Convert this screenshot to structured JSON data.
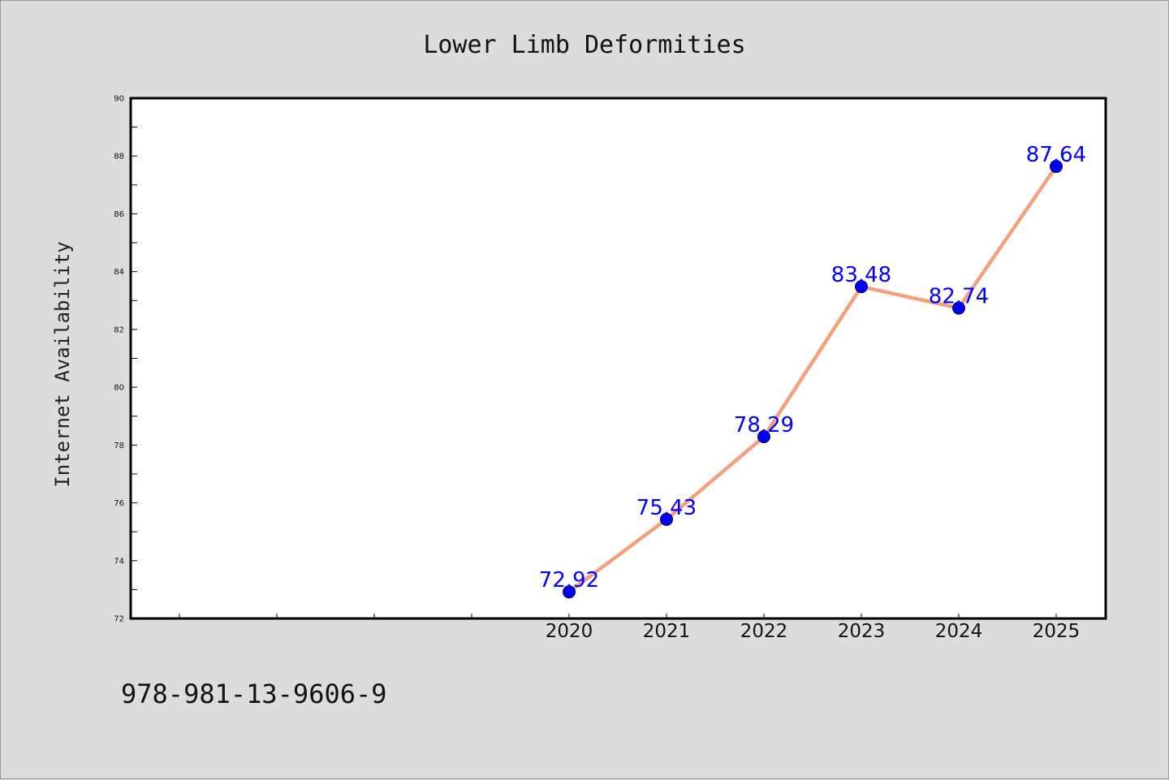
{
  "chart_data": {
    "type": "line",
    "title": "Lower Limb Deformities",
    "xlabel": "",
    "ylabel": "Internet Availability",
    "categories": [
      "2020",
      "2021",
      "2022",
      "2023",
      "2024",
      "2025"
    ],
    "series": [
      {
        "values": [
          72.92,
          75.43,
          78.29,
          83.48,
          82.74,
          87.64
        ]
      }
    ],
    "data_labels": [
      "72.92",
      "75.43",
      "78.29",
      "83.48",
      "82.74",
      "87.64"
    ],
    "ylim": [
      72,
      90
    ],
    "yticks": [
      72,
      74,
      76,
      78,
      80,
      82,
      84,
      86,
      88,
      90
    ],
    "grid": false,
    "line_color": "#f4a07e",
    "marker_color": "#0000ff",
    "label_color": "#0000ff",
    "plot_background": "#ffffff",
    "page_background": "#dcdcdc"
  },
  "footer": {
    "text": "978-981-13-9606-9"
  }
}
